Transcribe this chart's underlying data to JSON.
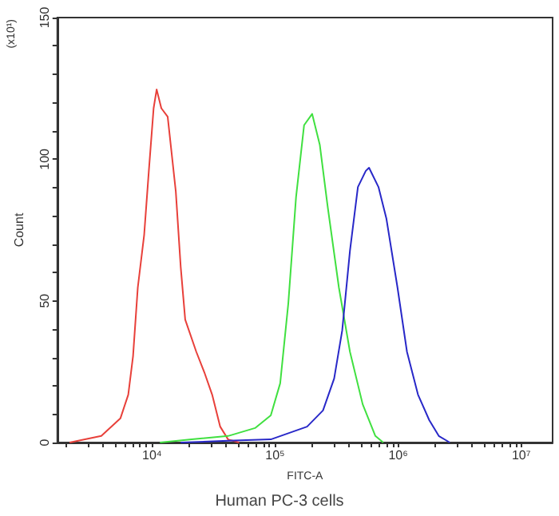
{
  "chart_data": {
    "type": "line",
    "xlabel": "FITC-A",
    "ylabel": "Count",
    "annotations": [
      "(x10¹)",
      "Human PC-3 cells"
    ],
    "log": "x",
    "grid": false,
    "marker": "none",
    "line_style": "solid",
    "xlim": [
      1700,
      18000000
    ],
    "xticks": [
      {
        "value": 2000,
        "label": null
      },
      {
        "value": 3000,
        "label": null
      },
      {
        "value": 4000,
        "label": null
      },
      {
        "value": 5000,
        "label": null
      },
      {
        "value": 6000,
        "label": null
      },
      {
        "value": 7000,
        "label": null
      },
      {
        "value": 8000,
        "label": null
      },
      {
        "value": 9000,
        "label": null
      },
      {
        "value": 10000,
        "label": "10⁴"
      },
      {
        "value": 20000,
        "label": null
      },
      {
        "value": 30000,
        "label": null
      },
      {
        "value": 40000,
        "label": null
      },
      {
        "value": 50000,
        "label": null
      },
      {
        "value": 60000,
        "label": null
      },
      {
        "value": 70000,
        "label": null
      },
      {
        "value": 80000,
        "label": null
      },
      {
        "value": 90000,
        "label": null
      },
      {
        "value": 100000,
        "label": "10⁵"
      },
      {
        "value": 200000,
        "label": null
      },
      {
        "value": 300000,
        "label": null
      },
      {
        "value": 400000,
        "label": null
      },
      {
        "value": 500000,
        "label": null
      },
      {
        "value": 600000,
        "label": null
      },
      {
        "value": 700000,
        "label": null
      },
      {
        "value": 800000,
        "label": null
      },
      {
        "value": 900000,
        "label": null
      },
      {
        "value": 1000000,
        "label": "10⁶"
      },
      {
        "value": 2000000,
        "label": null
      },
      {
        "value": 3000000,
        "label": null
      },
      {
        "value": 4000000,
        "label": null
      },
      {
        "value": 5000000,
        "label": null
      },
      {
        "value": 6000000,
        "label": null
      },
      {
        "value": 7000000,
        "label": null
      },
      {
        "value": 8000000,
        "label": null
      },
      {
        "value": 9000000,
        "label": null
      },
      {
        "value": 10000000,
        "label": "10⁷"
      }
    ],
    "ylim": [
      0,
      150
    ],
    "yticks": [
      0,
      {
        "value": 10,
        "label": null
      },
      {
        "value": 20,
        "label": null
      },
      {
        "value": 30,
        "label": null
      },
      {
        "value": 40,
        "label": null
      },
      50,
      {
        "value": 60,
        "label": null
      },
      {
        "value": 70,
        "label": null
      },
      {
        "value": 80,
        "label": null
      },
      {
        "value": 90,
        "label": null
      },
      100,
      {
        "value": 110,
        "label": null
      },
      {
        "value": 120,
        "label": null
      },
      {
        "value": 130,
        "label": null
      },
      {
        "value": 140,
        "label": null
      },
      150
    ],
    "series": [
      {
        "color": "#e8403a",
        "x": [
          2140,
          3870,
          5530,
          6410,
          7010,
          7660,
          8630,
          9420,
          10300,
          10900,
          11900,
          13400,
          15600,
          17100,
          18600,
          22900,
          26600,
          30800,
          35800,
          41500,
          51000
        ],
        "values": [
          0,
          2.3,
          8.5,
          16.9,
          30.5,
          54.7,
          73.3,
          95.9,
          118,
          124.6,
          118,
          115,
          88.6,
          62,
          43.4,
          32,
          24.8,
          16.9,
          5.6,
          1.1,
          0
        ]
      },
      {
        "color": "#40e040",
        "x": [
          11600,
          21000,
          41500,
          68700,
          92300,
          110000,
          128000,
          148000,
          172000,
          200000,
          231000,
          268000,
          330000,
          406000,
          515000,
          653000,
          757000
        ],
        "values": [
          0,
          1.1,
          2.3,
          5.1,
          9.6,
          20.9,
          49,
          86.6,
          112,
          116,
          105,
          83,
          54.7,
          32,
          13.5,
          2.3,
          0
        ]
      },
      {
        "color": "#2828c8",
        "x": [
          17100,
          41500,
          92300,
          182000,
          245000,
          302000,
          351000,
          406000,
          471000,
          546000,
          580000,
          692000,
          803000,
          988000,
          1180000,
          1450000,
          1790000,
          2140000,
          2630000
        ],
        "values": [
          0,
          0.6,
          1.1,
          5.6,
          11.3,
          22.6,
          39.5,
          67.7,
          90.2,
          95.9,
          97,
          90.2,
          79,
          54.7,
          32,
          16.9,
          7.9,
          2.3,
          0
        ]
      }
    ]
  }
}
